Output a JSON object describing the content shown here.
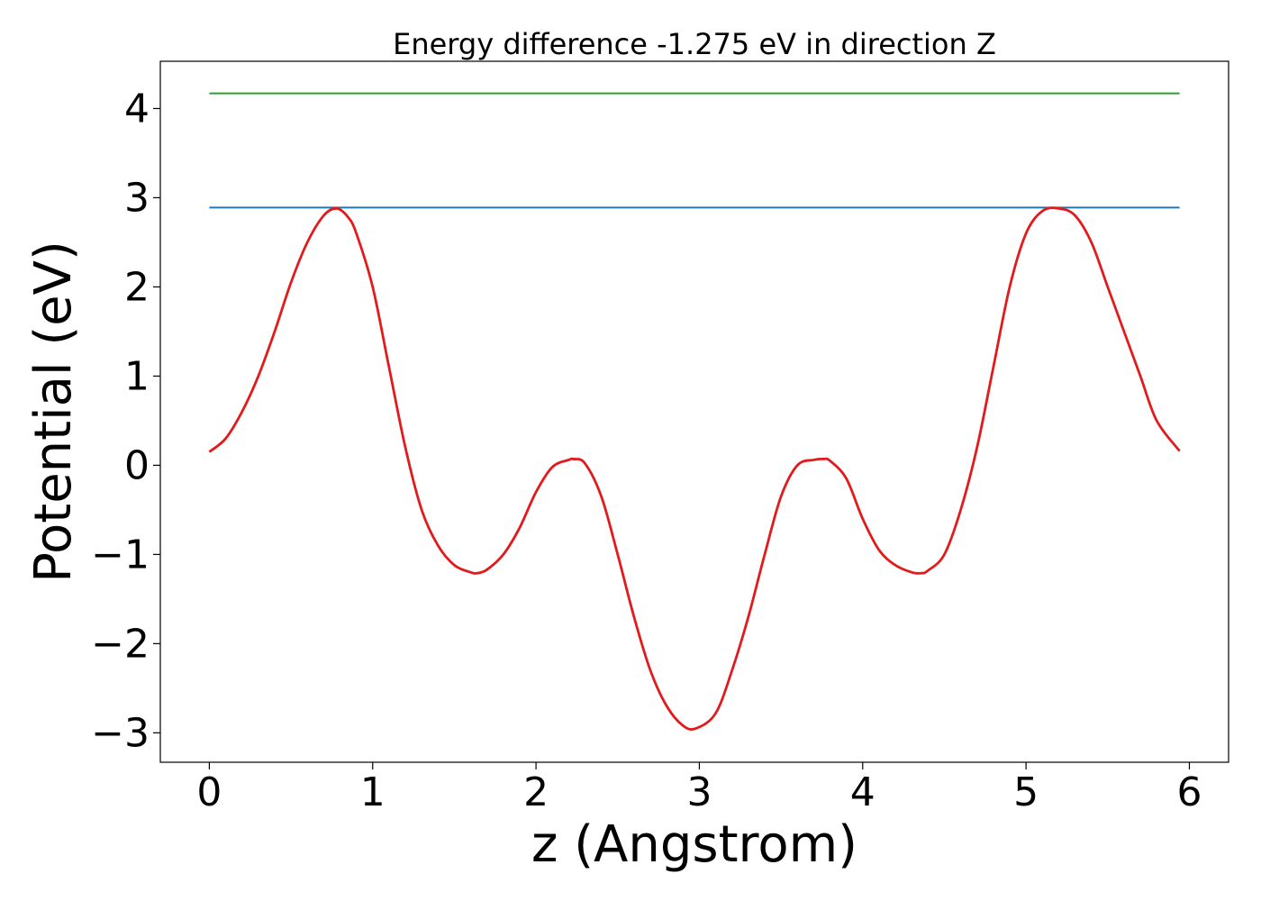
{
  "chart_data": {
    "type": "line",
    "title": "Energy difference -1.275 eV in direction Z",
    "xlabel": "z (Angstrom)",
    "ylabel": "Potential (eV)",
    "xlim": [
      -0.3,
      6.24
    ],
    "ylim": [
      -3.33,
      4.53
    ],
    "grid": false,
    "x_ticks": [
      0,
      1,
      2,
      3,
      4,
      5,
      6
    ],
    "x_tick_labels": [
      "0",
      "1",
      "2",
      "3",
      "4",
      "5",
      "6"
    ],
    "y_ticks": [
      -3,
      -2,
      -1,
      0,
      1,
      2,
      3,
      4
    ],
    "y_tick_labels": [
      "−3",
      "−2",
      "−1",
      "0",
      "1",
      "2",
      "3",
      "4"
    ],
    "colors": {
      "potential": "#e31a1c",
      "max_line": "#1f77b4",
      "upper_line": "#2ca02c"
    },
    "series": [
      {
        "key": "potential",
        "x": [
          0.0,
          0.1,
          0.2,
          0.3,
          0.4,
          0.5,
          0.6,
          0.7,
          0.78,
          0.85,
          0.9,
          1.0,
          1.1,
          1.2,
          1.3,
          1.4,
          1.5,
          1.6,
          1.64,
          1.7,
          1.8,
          1.9,
          2.0,
          2.1,
          2.2,
          2.23,
          2.3,
          2.4,
          2.5,
          2.6,
          2.7,
          2.8,
          2.9,
          2.98,
          3.1,
          3.2,
          3.3,
          3.4,
          3.5,
          3.6,
          3.7,
          3.76,
          3.8,
          3.9,
          4.0,
          4.1,
          4.2,
          4.3,
          4.36,
          4.4,
          4.5,
          4.6,
          4.7,
          4.8,
          4.9,
          5.0,
          5.1,
          5.2,
          5.3,
          5.4,
          5.5,
          5.6,
          5.7,
          5.8,
          5.94
        ],
        "y": [
          0.15,
          0.3,
          0.6,
          1.0,
          1.5,
          2.05,
          2.5,
          2.8,
          2.88,
          2.78,
          2.6,
          2.0,
          1.1,
          0.2,
          -0.5,
          -0.9,
          -1.12,
          -1.2,
          -1.21,
          -1.17,
          -1.0,
          -0.7,
          -0.3,
          -0.02,
          0.06,
          0.07,
          0.02,
          -0.35,
          -1.0,
          -1.7,
          -2.3,
          -2.7,
          -2.92,
          -2.95,
          -2.78,
          -2.3,
          -1.7,
          -1.0,
          -0.35,
          0.0,
          0.06,
          0.07,
          0.05,
          -0.15,
          -0.6,
          -0.95,
          -1.12,
          -1.2,
          -1.21,
          -1.18,
          -1.0,
          -0.5,
          0.2,
          1.1,
          2.0,
          2.6,
          2.85,
          2.88,
          2.8,
          2.5,
          2.0,
          1.5,
          1.0,
          0.5,
          0.16
        ]
      },
      {
        "key": "max_line",
        "x": [
          0.0,
          5.94
        ],
        "y": [
          2.89,
          2.89
        ]
      },
      {
        "key": "upper_line",
        "x": [
          0.0,
          5.94
        ],
        "y": [
          4.17,
          4.17
        ]
      }
    ]
  }
}
